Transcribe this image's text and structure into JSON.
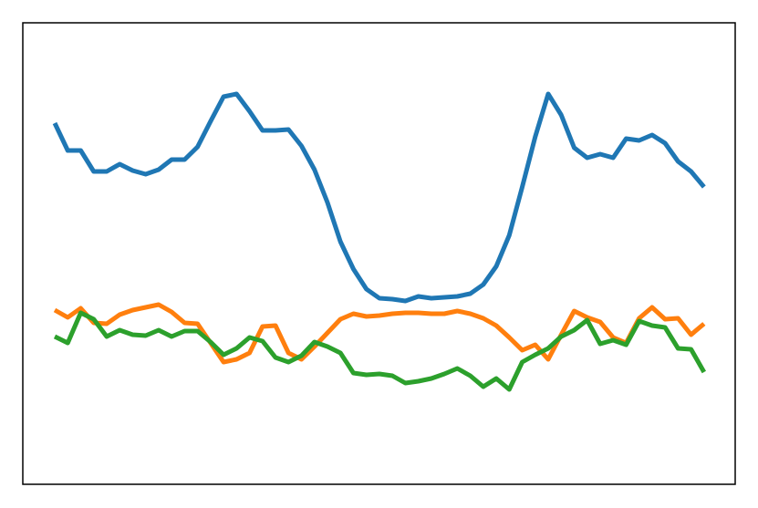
{
  "chart_data": {
    "type": "line",
    "x": [
      0,
      1,
      2,
      3,
      4,
      5,
      6,
      7,
      8,
      9,
      10,
      11,
      12,
      13,
      14,
      15,
      16,
      17,
      18,
      19,
      20,
      21,
      22,
      23,
      24,
      25,
      26,
      27,
      28,
      29,
      30,
      31,
      32,
      33,
      34,
      35,
      36,
      37,
      38,
      39,
      40,
      41,
      42,
      43,
      44,
      45,
      46,
      47,
      48,
      49,
      50
    ],
    "xlim": [
      -2.46,
      52.4
    ],
    "ylim": [
      0,
      506
    ],
    "series": [
      {
        "color": "#1f77b4",
        "values": [
          396,
          366,
          366,
          343,
          343,
          351,
          344,
          340,
          345,
          356,
          356,
          370,
          398,
          425,
          428,
          409,
          388,
          388,
          389,
          371,
          345,
          309,
          266,
          236,
          214,
          204,
          203,
          201,
          206,
          204,
          205,
          206,
          209,
          219,
          239,
          273,
          326,
          381,
          428,
          405,
          369,
          358,
          362,
          358,
          379,
          377,
          383,
          374,
          354,
          343,
          326
        ]
      },
      {
        "color": "#ff7f0e",
        "values": [
          191,
          183,
          193,
          177,
          176,
          186,
          191,
          194,
          197,
          189,
          177,
          176,
          155,
          134,
          137,
          144,
          173,
          174,
          144,
          137,
          151,
          166,
          181,
          187,
          184,
          185,
          187,
          188,
          188,
          187,
          187,
          190,
          187,
          182,
          174,
          161,
          147,
          153,
          137,
          164,
          190,
          183,
          178,
          161,
          155,
          182,
          194,
          181,
          182,
          164,
          176
        ]
      },
      {
        "color": "#2ca02c",
        "values": [
          162,
          155,
          188,
          181,
          162,
          169,
          164,
          163,
          169,
          162,
          168,
          168,
          156,
          142,
          149,
          161,
          157,
          139,
          134,
          141,
          156,
          151,
          144,
          122,
          120,
          121,
          119,
          111,
          113,
          116,
          121,
          127,
          119,
          107,
          116,
          104,
          134,
          142,
          149,
          162,
          169,
          180,
          154,
          158,
          153,
          179,
          174,
          172,
          149,
          148,
          123
        ]
      }
    ]
  }
}
